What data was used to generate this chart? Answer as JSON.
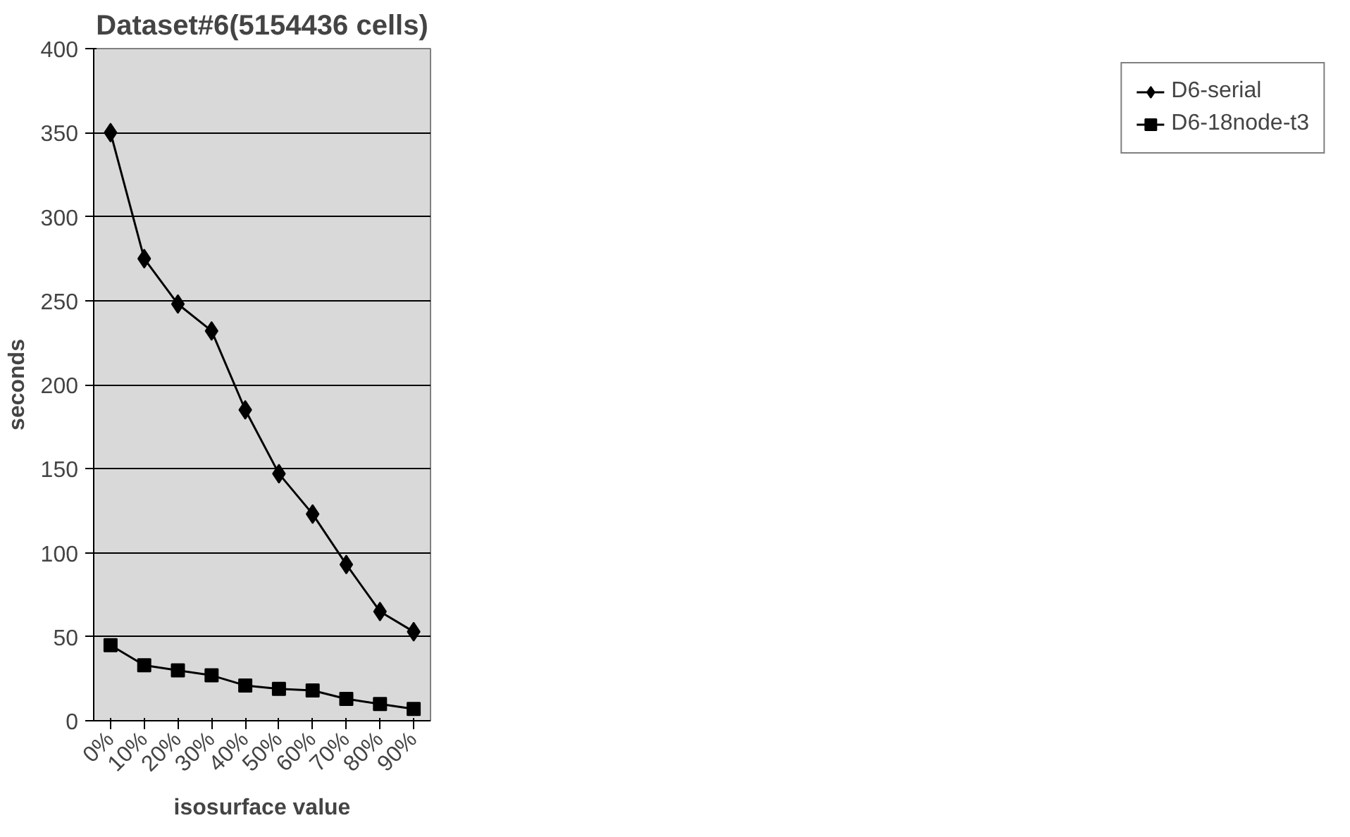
{
  "chart_data": {
    "type": "line",
    "title": "Dataset#6(5154436 cells)",
    "xlabel": "isosurface value",
    "ylabel": "seconds",
    "categories": [
      "0%",
      "10%",
      "20%",
      "30%",
      "40%",
      "50%",
      "60%",
      "70%",
      "80%",
      "90%"
    ],
    "series": [
      {
        "name": "D6-serial",
        "color": "#000000",
        "marker": "diamond",
        "values": [
          350,
          275,
          248,
          232,
          185,
          147,
          123,
          93,
          65,
          53
        ]
      },
      {
        "name": "D6-18node-t3",
        "color": "#000000",
        "marker": "square",
        "values": [
          45,
          33,
          30,
          27,
          21,
          19,
          18,
          13,
          10,
          7
        ]
      }
    ],
    "ylim": [
      0,
      400
    ],
    "yticks": [
      0,
      50,
      100,
      150,
      200,
      250,
      300,
      350,
      400
    ],
    "grid": "y",
    "legend": "right",
    "line_style": "solid"
  }
}
